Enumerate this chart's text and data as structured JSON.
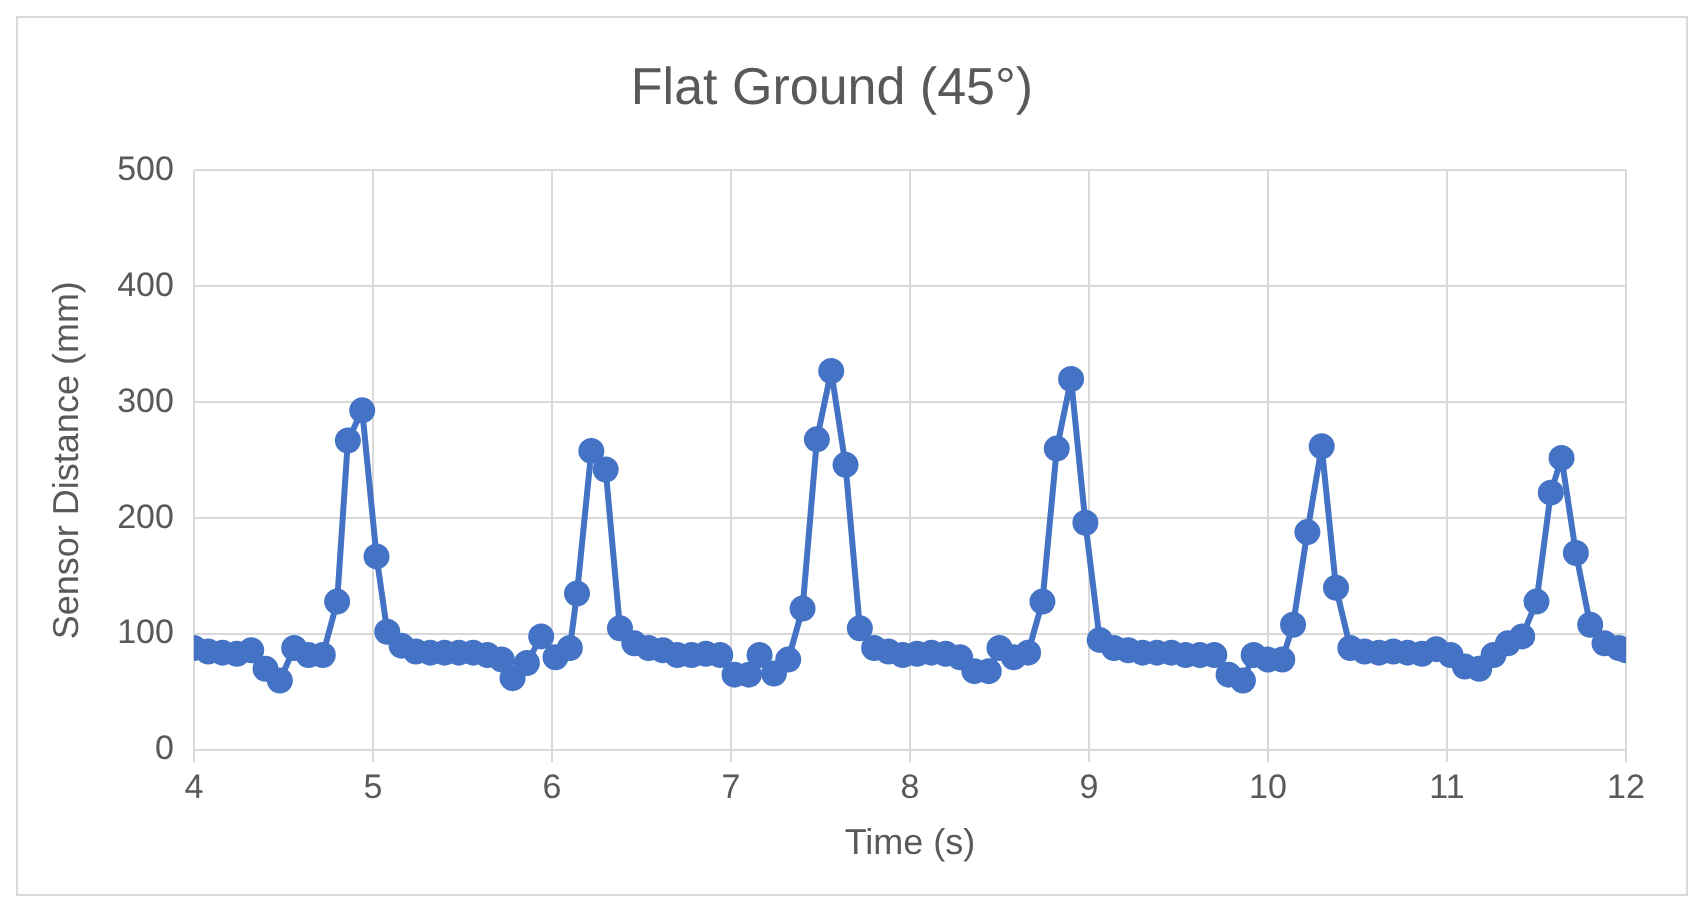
{
  "chart_data": {
    "type": "line",
    "title": "Flat Ground (45°)",
    "xlabel": "Time (s)",
    "ylabel": "Sensor Distance (mm)",
    "xlim": [
      4,
      12
    ],
    "xticks": [
      4,
      5,
      6,
      7,
      8,
      9,
      10,
      11,
      12
    ],
    "ylim": [
      0,
      500
    ],
    "yticks": [
      0,
      100,
      200,
      300,
      400,
      500
    ],
    "grid": true,
    "legend": false,
    "marker": "circle",
    "line_style": "solid",
    "series": [
      {
        "color": "#4472c4",
        "x": [
          4.0,
          4.08,
          4.16,
          4.24,
          4.32,
          4.4,
          4.48,
          4.56,
          4.64,
          4.72,
          4.8,
          4.86,
          4.94,
          5.02,
          5.08,
          5.16,
          5.24,
          5.32,
          5.4,
          5.48,
          5.56,
          5.64,
          5.72,
          5.78,
          5.86,
          5.94,
          6.02,
          6.1,
          6.14,
          6.22,
          6.3,
          6.38,
          6.46,
          6.54,
          6.62,
          6.7,
          6.78,
          6.86,
          6.94,
          7.02,
          7.1,
          7.16,
          7.24,
          7.32,
          7.4,
          7.48,
          7.56,
          7.64,
          7.72,
          7.8,
          7.88,
          7.96,
          8.04,
          8.12,
          8.2,
          8.28,
          8.36,
          8.44,
          8.5,
          8.58,
          8.66,
          8.74,
          8.82,
          8.9,
          8.98,
          9.06,
          9.14,
          9.22,
          9.3,
          9.38,
          9.46,
          9.54,
          9.62,
          9.7,
          9.78,
          9.86,
          9.92,
          10.0,
          10.08,
          10.14,
          10.22,
          10.3,
          10.38,
          10.46,
          10.54,
          10.62,
          10.7,
          10.78,
          10.86,
          10.94,
          11.02,
          11.1,
          11.18,
          11.26,
          11.34,
          11.42,
          11.5,
          11.58,
          11.64,
          11.72,
          11.8,
          11.88,
          11.96,
          12.0
        ],
        "values": [
          88,
          85,
          84,
          83,
          86,
          70,
          60,
          88,
          82,
          82,
          128,
          267,
          293,
          167,
          102,
          90,
          85,
          84,
          84,
          84,
          84,
          82,
          78,
          62,
          75,
          98,
          80,
          88,
          135,
          258,
          242,
          105,
          92,
          88,
          86,
          82,
          82,
          83,
          82,
          65,
          65,
          82,
          66,
          78,
          122,
          268,
          327,
          246,
          105,
          88,
          85,
          82,
          83,
          84,
          83,
          80,
          68,
          68,
          88,
          80,
          84,
          128,
          260,
          320,
          196,
          95,
          88,
          86,
          84,
          84,
          84,
          82,
          82,
          82,
          65,
          60,
          82,
          78,
          78,
          108,
          188,
          262,
          140,
          88,
          85,
          84,
          85,
          84,
          83,
          87,
          82,
          72,
          70,
          82,
          92,
          98,
          128,
          222,
          252,
          170,
          108,
          92,
          88,
          86
        ]
      }
    ]
  }
}
